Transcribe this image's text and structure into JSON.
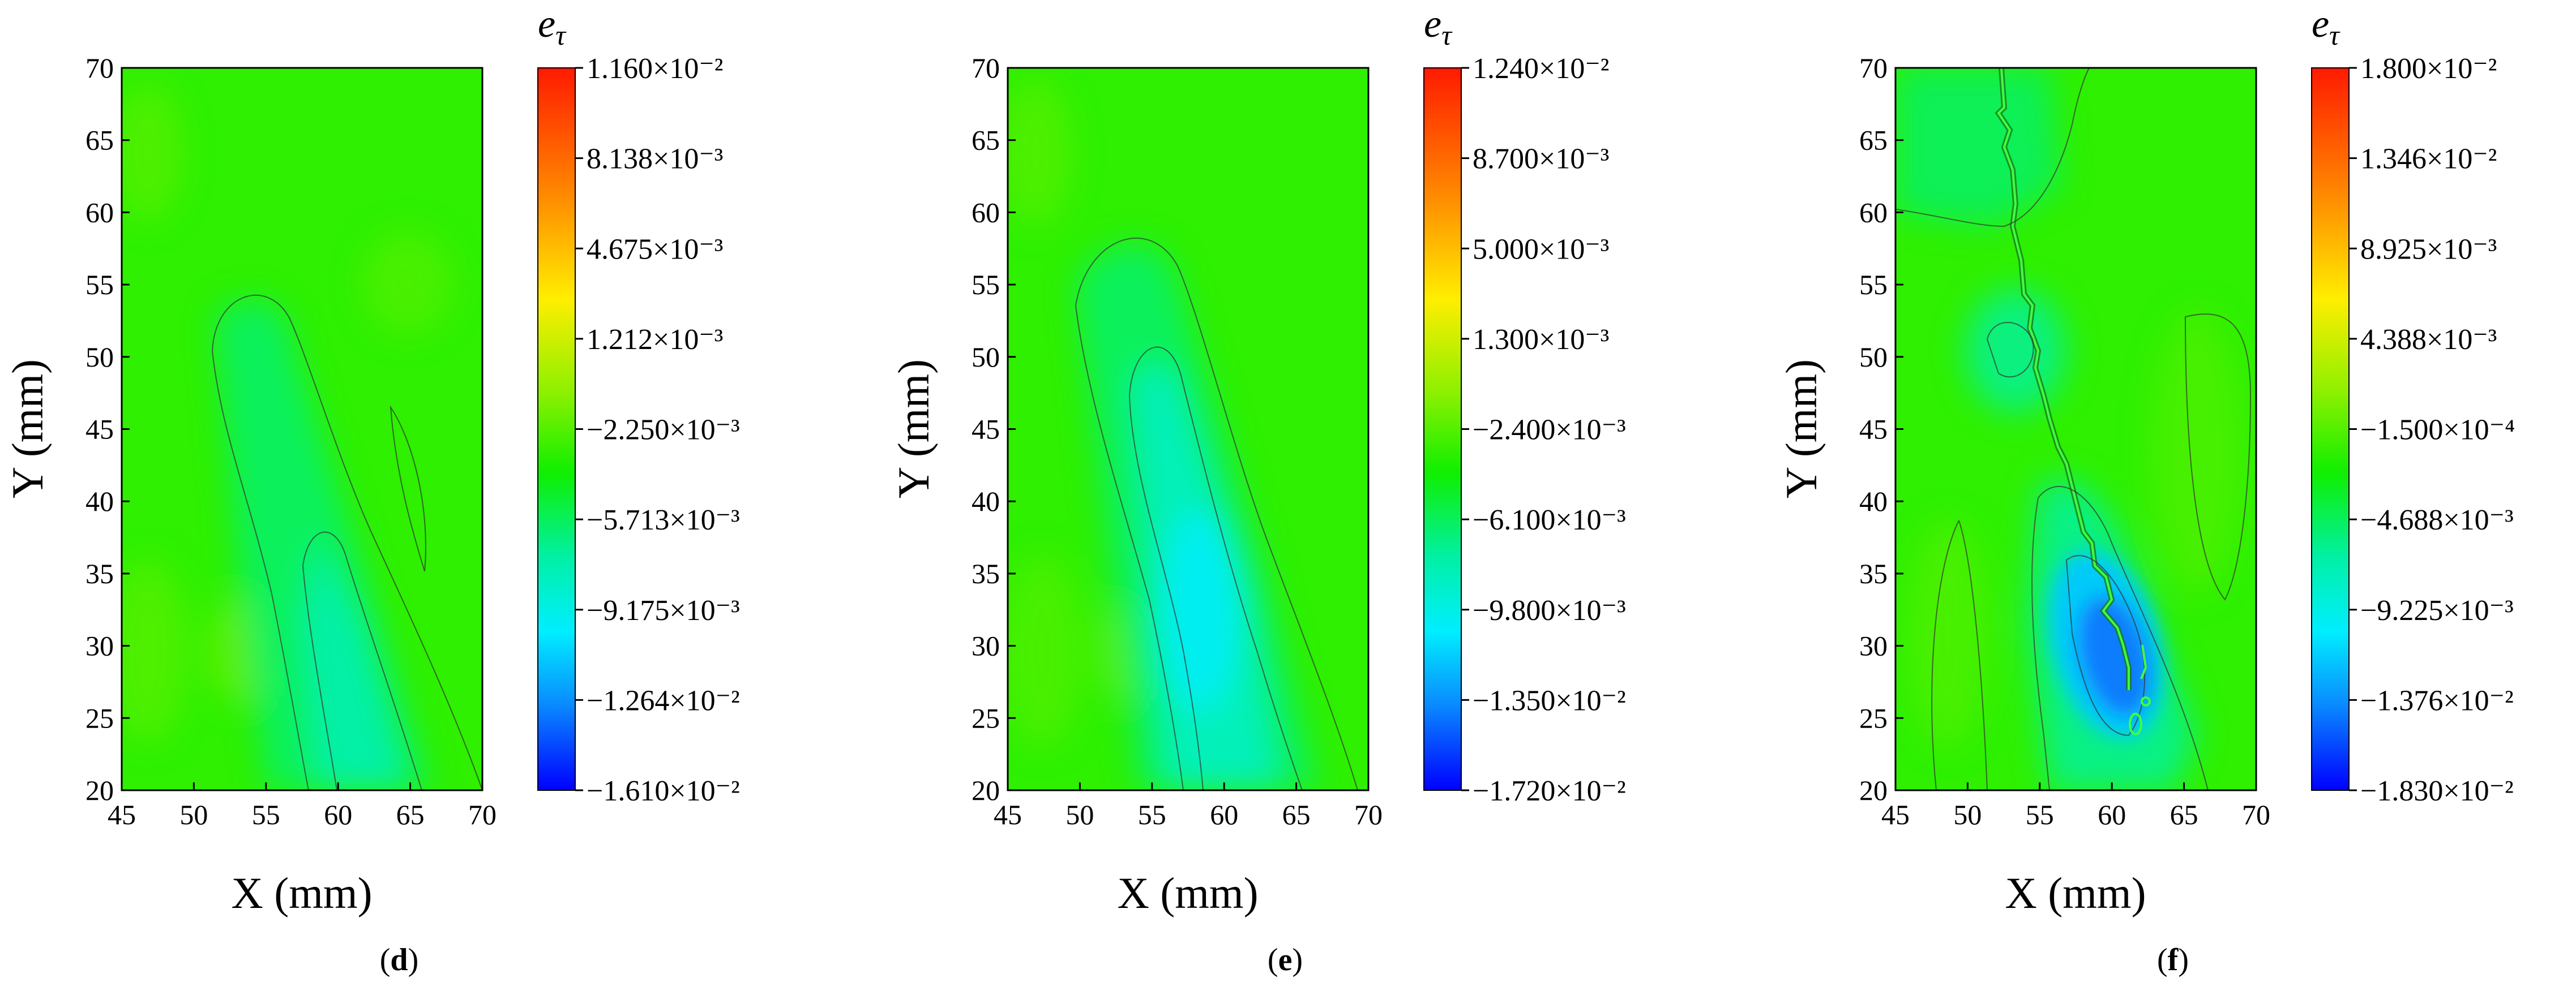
{
  "chart_data": [
    {
      "type": "heatmap",
      "panel_label": "d",
      "xlabel": "X (mm)",
      "ylabel": "Y (mm)",
      "xlim": [
        45,
        70
      ],
      "ylim": [
        20,
        70
      ],
      "xticks": [
        45,
        50,
        55,
        60,
        65,
        70
      ],
      "yticks": [
        20,
        25,
        30,
        35,
        40,
        45,
        50,
        55,
        60,
        65,
        70
      ],
      "colorbar": {
        "title": "e",
        "title_sub": "τ",
        "ticks": [
          "1.160×10⁻²",
          "8.138×10⁻³",
          "4.675×10⁻³",
          "1.212×10⁻³",
          "−2.250×10⁻³",
          "−5.713×10⁻³",
          "−9.175×10⁻³",
          "−1.264×10⁻²",
          "−1.610×10⁻²"
        ],
        "range": [
          -0.0161,
          0.0116
        ]
      }
    },
    {
      "type": "heatmap",
      "panel_label": "e",
      "xlabel": "X (mm)",
      "ylabel": "Y (mm)",
      "xlim": [
        45,
        70
      ],
      "ylim": [
        20,
        70
      ],
      "xticks": [
        45,
        50,
        55,
        60,
        65,
        70
      ],
      "yticks": [
        20,
        25,
        30,
        35,
        40,
        45,
        50,
        55,
        60,
        65,
        70
      ],
      "colorbar": {
        "title": "e",
        "title_sub": "τ",
        "ticks": [
          "1.240×10⁻²",
          "8.700×10⁻³",
          "5.000×10⁻³",
          "1.300×10⁻³",
          "−2.400×10⁻³",
          "−6.100×10⁻³",
          "−9.800×10⁻³",
          "−1.350×10⁻²",
          "−1.720×10⁻²"
        ],
        "range": [
          -0.0172,
          0.0124
        ]
      }
    },
    {
      "type": "heatmap",
      "panel_label": "f",
      "xlabel": "X (mm)",
      "ylabel": "Y (mm)",
      "xlim": [
        45,
        70
      ],
      "ylim": [
        20,
        70
      ],
      "xticks": [
        45,
        50,
        55,
        60,
        65,
        70
      ],
      "yticks": [
        20,
        25,
        30,
        35,
        40,
        45,
        50,
        55,
        60,
        65,
        70
      ],
      "colorbar": {
        "title": "e",
        "title_sub": "τ",
        "ticks": [
          "1.800×10⁻²",
          "1.346×10⁻²",
          "8.925×10⁻³",
          "4.388×10⁻³",
          "−1.500×10⁻⁴",
          "−4.688×10⁻³",
          "−9.225×10⁻³",
          "−1.376×10⁻²",
          "−1.830×10⁻²"
        ],
        "range": [
          -0.0183,
          0.018
        ]
      }
    }
  ]
}
